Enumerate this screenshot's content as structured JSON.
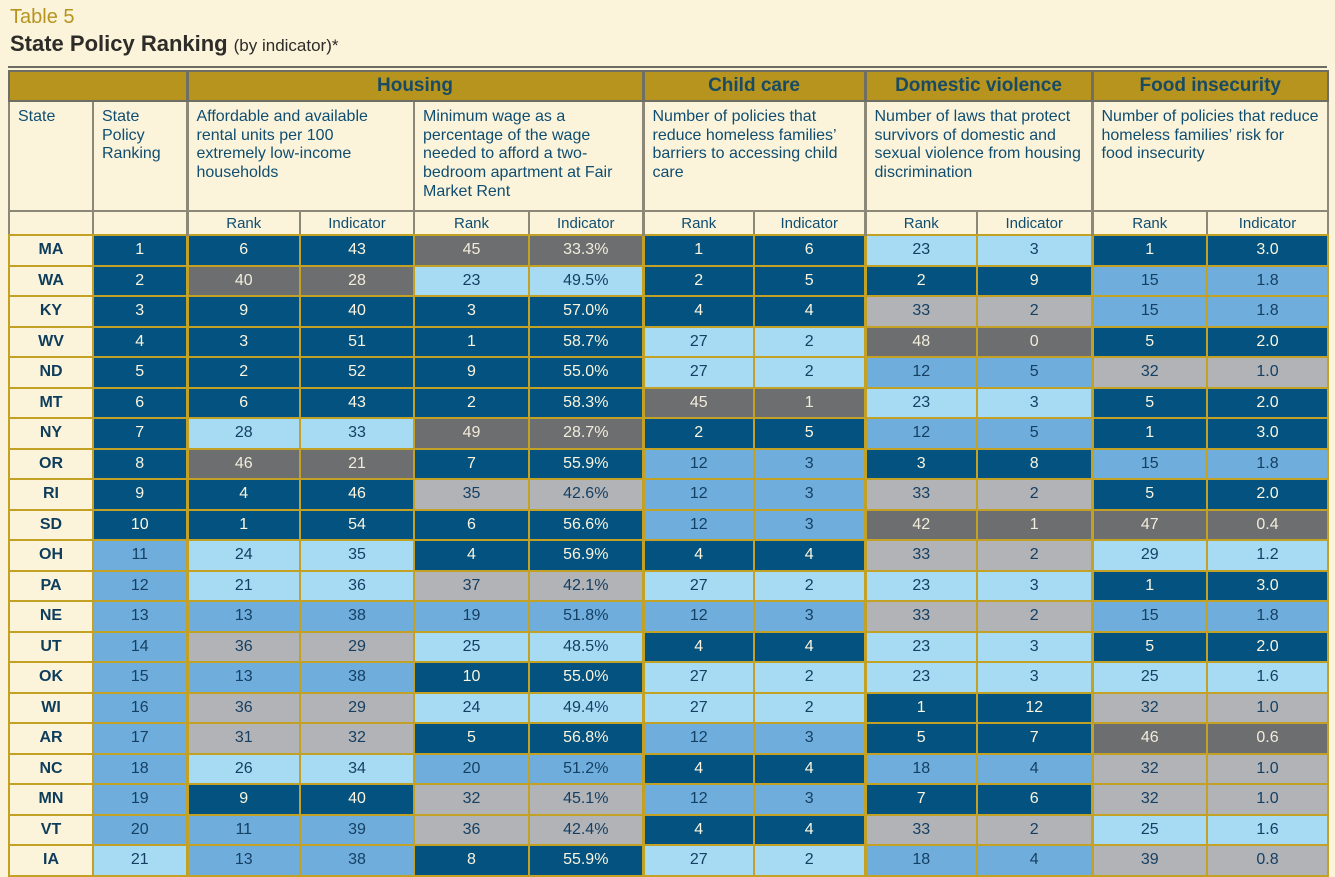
{
  "title": {
    "table_label": "Table 5",
    "heading": "State Policy Ranking",
    "qualifier": "(by indicator)*"
  },
  "colors": {
    "dark_blue": "#03527F",
    "medium_blue": "#6FAEDC",
    "light_blue": "#A6DBF3",
    "light_gray": "#B1B3B6",
    "dark_gray": "#6C6E70",
    "gold_band": "#B6941D",
    "gold_border": "#C2A125",
    "cream_background": "#FBF4DB",
    "navy_text": "#0F4D71"
  },
  "table": {
    "categories": [
      {
        "label": "Housing",
        "span": 4
      },
      {
        "label": "Child care",
        "span": 2
      },
      {
        "label": "Domestic violence",
        "span": 2
      },
      {
        "label": "Food insecurity",
        "span": 2
      }
    ],
    "columns": {
      "state": "State",
      "state_policy_ranking": "State Policy Ranking",
      "housing_units": "Affordable and available rental units per 100 extremely low-income households",
      "minimum_wage": "Minimum wage as a percentage of the wage needed to afford a two-bedroom apartment at Fair Market Rent",
      "child_care": "Number of policies that reduce homeless families’ barriers to accessing child care",
      "domestic_violence": "Number of laws that protect survivors of domestic and sexual violence from housing discrimination",
      "food_insecurity": "Number of policies that reduce homeless families’ risk for food insecurity"
    },
    "subheaders": {
      "rank": "Rank",
      "indicator": "Indicator"
    },
    "color_key": {
      "db": "dark_blue",
      "mb": "medium_blue",
      "lb": "light_blue",
      "lg": "light_gray",
      "dg": "dark_gray"
    },
    "rows": [
      {
        "state": "MA",
        "cells": [
          [
            "1",
            "db"
          ],
          [
            "6",
            "db"
          ],
          [
            "43",
            "db"
          ],
          [
            "45",
            "dg"
          ],
          [
            "33.3%",
            "dg"
          ],
          [
            "1",
            "db"
          ],
          [
            "6",
            "db"
          ],
          [
            "23",
            "lb"
          ],
          [
            "3",
            "lb"
          ],
          [
            "1",
            "db"
          ],
          [
            "3.0",
            "db"
          ]
        ]
      },
      {
        "state": "WA",
        "cells": [
          [
            "2",
            "db"
          ],
          [
            "40",
            "dg"
          ],
          [
            "28",
            "dg"
          ],
          [
            "23",
            "lb"
          ],
          [
            "49.5%",
            "lb"
          ],
          [
            "2",
            "db"
          ],
          [
            "5",
            "db"
          ],
          [
            "2",
            "db"
          ],
          [
            "9",
            "db"
          ],
          [
            "15",
            "mb"
          ],
          [
            "1.8",
            "mb"
          ]
        ]
      },
      {
        "state": "KY",
        "cells": [
          [
            "3",
            "db"
          ],
          [
            "9",
            "db"
          ],
          [
            "40",
            "db"
          ],
          [
            "3",
            "db"
          ],
          [
            "57.0%",
            "db"
          ],
          [
            "4",
            "db"
          ],
          [
            "4",
            "db"
          ],
          [
            "33",
            "lg"
          ],
          [
            "2",
            "lg"
          ],
          [
            "15",
            "mb"
          ],
          [
            "1.8",
            "mb"
          ]
        ]
      },
      {
        "state": "WV",
        "cells": [
          [
            "4",
            "db"
          ],
          [
            "3",
            "db"
          ],
          [
            "51",
            "db"
          ],
          [
            "1",
            "db"
          ],
          [
            "58.7%",
            "db"
          ],
          [
            "27",
            "lb"
          ],
          [
            "2",
            "lb"
          ],
          [
            "48",
            "dg"
          ],
          [
            "0",
            "dg"
          ],
          [
            "5",
            "db"
          ],
          [
            "2.0",
            "db"
          ]
        ]
      },
      {
        "state": "ND",
        "cells": [
          [
            "5",
            "db"
          ],
          [
            "2",
            "db"
          ],
          [
            "52",
            "db"
          ],
          [
            "9",
            "db"
          ],
          [
            "55.0%",
            "db"
          ],
          [
            "27",
            "lb"
          ],
          [
            "2",
            "lb"
          ],
          [
            "12",
            "mb"
          ],
          [
            "5",
            "mb"
          ],
          [
            "32",
            "lg"
          ],
          [
            "1.0",
            "lg"
          ]
        ]
      },
      {
        "state": "MT",
        "cells": [
          [
            "6",
            "db"
          ],
          [
            "6",
            "db"
          ],
          [
            "43",
            "db"
          ],
          [
            "2",
            "db"
          ],
          [
            "58.3%",
            "db"
          ],
          [
            "45",
            "dg"
          ],
          [
            "1",
            "dg"
          ],
          [
            "23",
            "lb"
          ],
          [
            "3",
            "lb"
          ],
          [
            "5",
            "db"
          ],
          [
            "2.0",
            "db"
          ]
        ]
      },
      {
        "state": "NY",
        "cells": [
          [
            "7",
            "db"
          ],
          [
            "28",
            "lb"
          ],
          [
            "33",
            "lb"
          ],
          [
            "49",
            "dg"
          ],
          [
            "28.7%",
            "dg"
          ],
          [
            "2",
            "db"
          ],
          [
            "5",
            "db"
          ],
          [
            "12",
            "mb"
          ],
          [
            "5",
            "mb"
          ],
          [
            "1",
            "db"
          ],
          [
            "3.0",
            "db"
          ]
        ]
      },
      {
        "state": "OR",
        "cells": [
          [
            "8",
            "db"
          ],
          [
            "46",
            "dg"
          ],
          [
            "21",
            "dg"
          ],
          [
            "7",
            "db"
          ],
          [
            "55.9%",
            "db"
          ],
          [
            "12",
            "mb"
          ],
          [
            "3",
            "mb"
          ],
          [
            "3",
            "db"
          ],
          [
            "8",
            "db"
          ],
          [
            "15",
            "mb"
          ],
          [
            "1.8",
            "mb"
          ]
        ]
      },
      {
        "state": "RI",
        "cells": [
          [
            "9",
            "db"
          ],
          [
            "4",
            "db"
          ],
          [
            "46",
            "db"
          ],
          [
            "35",
            "lg"
          ],
          [
            "42.6%",
            "lg"
          ],
          [
            "12",
            "mb"
          ],
          [
            "3",
            "mb"
          ],
          [
            "33",
            "lg"
          ],
          [
            "2",
            "lg"
          ],
          [
            "5",
            "db"
          ],
          [
            "2.0",
            "db"
          ]
        ]
      },
      {
        "state": "SD",
        "cells": [
          [
            "10",
            "db"
          ],
          [
            "1",
            "db"
          ],
          [
            "54",
            "db"
          ],
          [
            "6",
            "db"
          ],
          [
            "56.6%",
            "db"
          ],
          [
            "12",
            "mb"
          ],
          [
            "3",
            "mb"
          ],
          [
            "42",
            "dg"
          ],
          [
            "1",
            "dg"
          ],
          [
            "47",
            "dg"
          ],
          [
            "0.4",
            "dg"
          ]
        ]
      },
      {
        "state": "OH",
        "cells": [
          [
            "11",
            "mb"
          ],
          [
            "24",
            "lb"
          ],
          [
            "35",
            "lb"
          ],
          [
            "4",
            "db"
          ],
          [
            "56.9%",
            "db"
          ],
          [
            "4",
            "db"
          ],
          [
            "4",
            "db"
          ],
          [
            "33",
            "lg"
          ],
          [
            "2",
            "lg"
          ],
          [
            "29",
            "lb"
          ],
          [
            "1.2",
            "lb"
          ]
        ]
      },
      {
        "state": "PA",
        "cells": [
          [
            "12",
            "mb"
          ],
          [
            "21",
            "lb"
          ],
          [
            "36",
            "lb"
          ],
          [
            "37",
            "lg"
          ],
          [
            "42.1%",
            "lg"
          ],
          [
            "27",
            "lb"
          ],
          [
            "2",
            "lb"
          ],
          [
            "23",
            "lb"
          ],
          [
            "3",
            "lb"
          ],
          [
            "1",
            "db"
          ],
          [
            "3.0",
            "db"
          ]
        ]
      },
      {
        "state": "NE",
        "cells": [
          [
            "13",
            "mb"
          ],
          [
            "13",
            "mb"
          ],
          [
            "38",
            "mb"
          ],
          [
            "19",
            "mb"
          ],
          [
            "51.8%",
            "mb"
          ],
          [
            "12",
            "mb"
          ],
          [
            "3",
            "mb"
          ],
          [
            "33",
            "lg"
          ],
          [
            "2",
            "lg"
          ],
          [
            "15",
            "mb"
          ],
          [
            "1.8",
            "mb"
          ]
        ]
      },
      {
        "state": "UT",
        "cells": [
          [
            "14",
            "mb"
          ],
          [
            "36",
            "lg"
          ],
          [
            "29",
            "lg"
          ],
          [
            "25",
            "lb"
          ],
          [
            "48.5%",
            "lb"
          ],
          [
            "4",
            "db"
          ],
          [
            "4",
            "db"
          ],
          [
            "23",
            "lb"
          ],
          [
            "3",
            "lb"
          ],
          [
            "5",
            "db"
          ],
          [
            "2.0",
            "db"
          ]
        ]
      },
      {
        "state": "OK",
        "cells": [
          [
            "15",
            "mb"
          ],
          [
            "13",
            "mb"
          ],
          [
            "38",
            "mb"
          ],
          [
            "10",
            "db"
          ],
          [
            "55.0%",
            "db"
          ],
          [
            "27",
            "lb"
          ],
          [
            "2",
            "lb"
          ],
          [
            "23",
            "lb"
          ],
          [
            "3",
            "lb"
          ],
          [
            "25",
            "lb"
          ],
          [
            "1.6",
            "lb"
          ]
        ]
      },
      {
        "state": "WI",
        "cells": [
          [
            "16",
            "mb"
          ],
          [
            "36",
            "lg"
          ],
          [
            "29",
            "lg"
          ],
          [
            "24",
            "lb"
          ],
          [
            "49.4%",
            "lb"
          ],
          [
            "27",
            "lb"
          ],
          [
            "2",
            "lb"
          ],
          [
            "1",
            "db"
          ],
          [
            "12",
            "db"
          ],
          [
            "32",
            "lg"
          ],
          [
            "1.0",
            "lg"
          ]
        ]
      },
      {
        "state": "AR",
        "cells": [
          [
            "17",
            "mb"
          ],
          [
            "31",
            "lg"
          ],
          [
            "32",
            "lg"
          ],
          [
            "5",
            "db"
          ],
          [
            "56.8%",
            "db"
          ],
          [
            "12",
            "mb"
          ],
          [
            "3",
            "mb"
          ],
          [
            "5",
            "db"
          ],
          [
            "7",
            "db"
          ],
          [
            "46",
            "dg"
          ],
          [
            "0.6",
            "dg"
          ]
        ]
      },
      {
        "state": "NC",
        "cells": [
          [
            "18",
            "mb"
          ],
          [
            "26",
            "lb"
          ],
          [
            "34",
            "lb"
          ],
          [
            "20",
            "mb"
          ],
          [
            "51.2%",
            "mb"
          ],
          [
            "4",
            "db"
          ],
          [
            "4",
            "db"
          ],
          [
            "18",
            "mb"
          ],
          [
            "4",
            "mb"
          ],
          [
            "32",
            "lg"
          ],
          [
            "1.0",
            "lg"
          ]
        ]
      },
      {
        "state": "MN",
        "cells": [
          [
            "19",
            "mb"
          ],
          [
            "9",
            "db"
          ],
          [
            "40",
            "db"
          ],
          [
            "32",
            "lg"
          ],
          [
            "45.1%",
            "lg"
          ],
          [
            "12",
            "mb"
          ],
          [
            "3",
            "mb"
          ],
          [
            "7",
            "db"
          ],
          [
            "6",
            "db"
          ],
          [
            "32",
            "lg"
          ],
          [
            "1.0",
            "lg"
          ]
        ]
      },
      {
        "state": "VT",
        "cells": [
          [
            "20",
            "mb"
          ],
          [
            "11",
            "mb"
          ],
          [
            "39",
            "mb"
          ],
          [
            "36",
            "lg"
          ],
          [
            "42.4%",
            "lg"
          ],
          [
            "4",
            "db"
          ],
          [
            "4",
            "db"
          ],
          [
            "33",
            "lg"
          ],
          [
            "2",
            "lg"
          ],
          [
            "25",
            "lb"
          ],
          [
            "1.6",
            "lb"
          ]
        ]
      },
      {
        "state": "IA",
        "cells": [
          [
            "21",
            "lb"
          ],
          [
            "13",
            "mb"
          ],
          [
            "38",
            "mb"
          ],
          [
            "8",
            "db"
          ],
          [
            "55.9%",
            "db"
          ],
          [
            "27",
            "lb"
          ],
          [
            "2",
            "lb"
          ],
          [
            "18",
            "mb"
          ],
          [
            "4",
            "mb"
          ],
          [
            "39",
            "lg"
          ],
          [
            "0.8",
            "lg"
          ]
        ]
      }
    ]
  }
}
